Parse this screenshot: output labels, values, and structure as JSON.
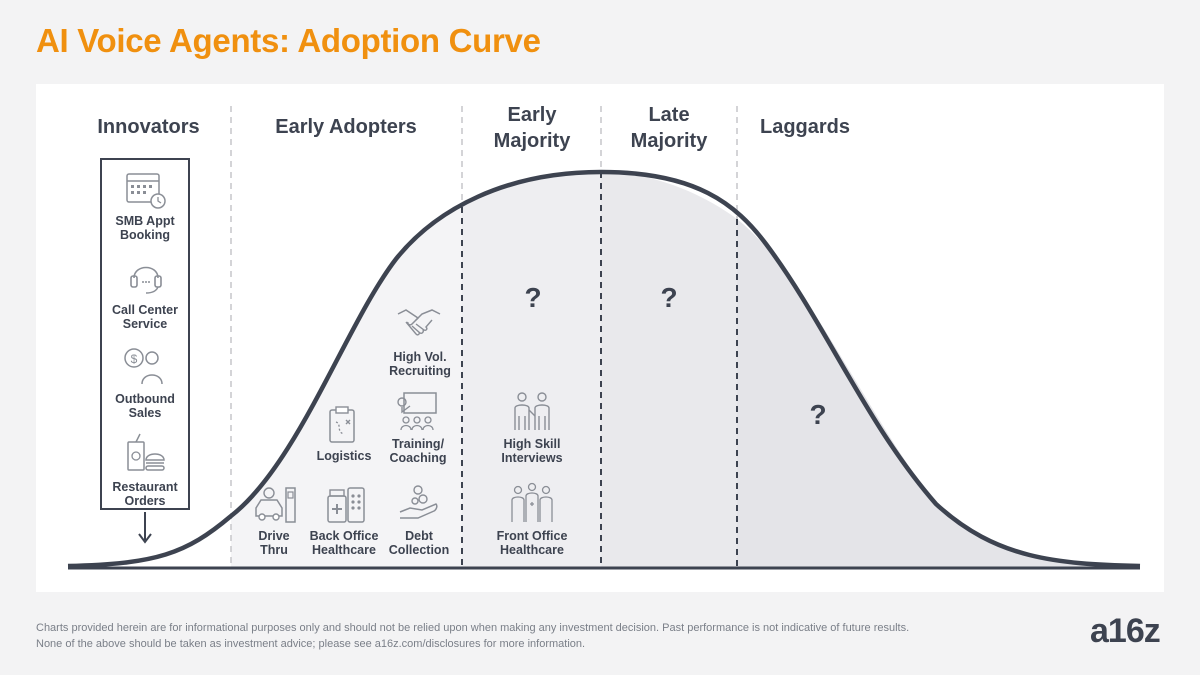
{
  "title": "AI Voice Agents: Adoption Curve",
  "segments": {
    "innovators": "Innovators",
    "early_adopters": "Early Adopters",
    "early_majority": "Early\nMajority",
    "late_majority": "Late\nMajority",
    "laggards": "Laggards"
  },
  "innovators_items": [
    {
      "label": "SMB Appt\nBooking",
      "icon": "calendar-clock-icon"
    },
    {
      "label": "Call Center\nService",
      "icon": "headset-icon"
    },
    {
      "label": "Outbound\nSales",
      "icon": "salesperson-dollar-icon"
    },
    {
      "label": "Restaurant\nOrders",
      "icon": "fast-food-icon"
    }
  ],
  "early_adopters_items": [
    {
      "label": "Drive\nThru",
      "icon": "car-drive-thru-icon"
    },
    {
      "label": "Back Office\nHealthcare",
      "icon": "medicine-bottles-icon"
    },
    {
      "label": "Debt\nCollection",
      "icon": "hand-coins-icon"
    },
    {
      "label": "Logistics",
      "icon": "clipboard-route-icon"
    },
    {
      "label": "Training/\nCoaching",
      "icon": "presentation-icon"
    },
    {
      "label": "High Vol.\nRecruiting",
      "icon": "handshake-icon"
    }
  ],
  "early_majority_items": [
    {
      "label": "High Skill\nInterviews",
      "icon": "interview-people-icon"
    },
    {
      "label": "Front Office\nHealthcare",
      "icon": "medical-staff-icon"
    }
  ],
  "unknown_marker": "?",
  "disclaimer": [
    "Charts provided herein are for informational purposes only and should not be relied upon when making any investment decision. Past performance is not indicative of future results.",
    "None of the above should be taken as investment advice; please see a16z.com/disclosures for more information."
  ],
  "logo": "a16z",
  "colors": {
    "title": "#f0900f",
    "text": "#3d4350",
    "curve": "#3d4350",
    "fill_light": "#f4f4f6",
    "fill_mid": "#ececef",
    "fill_dark": "#e4e4e8"
  }
}
